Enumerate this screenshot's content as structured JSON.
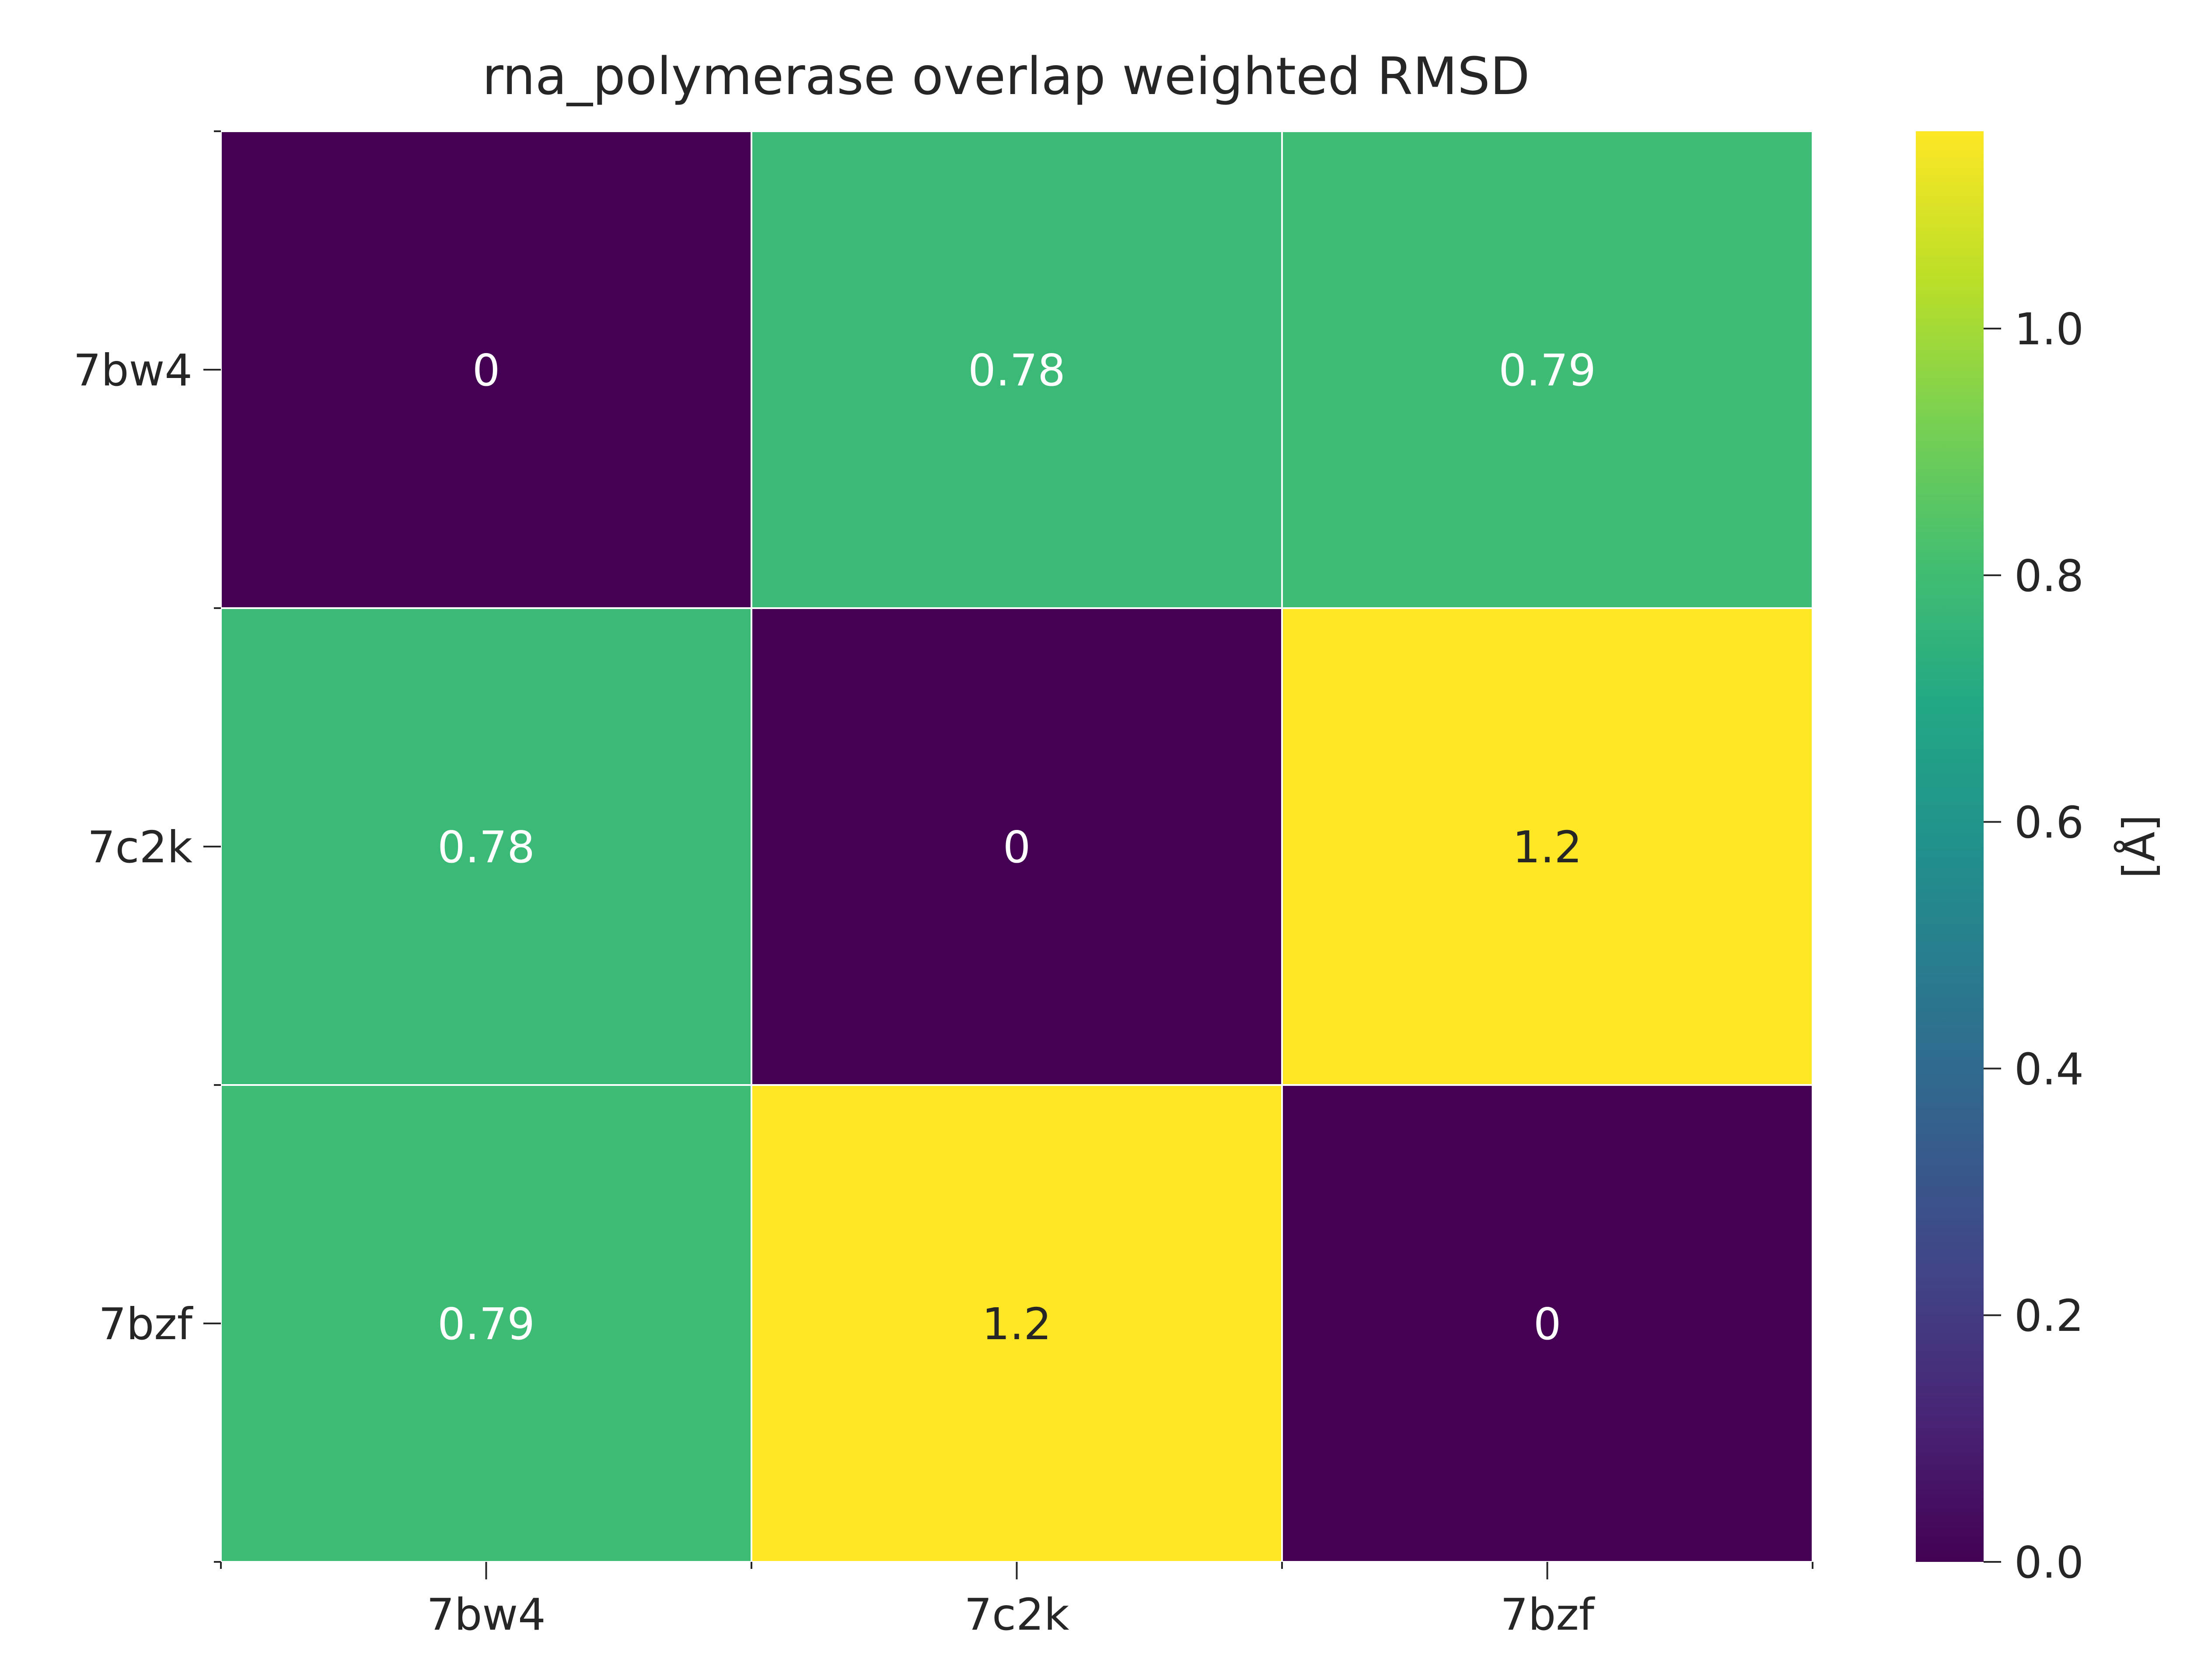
{
  "chart_data": {
    "type": "heatmap",
    "title": "rna_polymerase overlap weighted RMSD",
    "xlabel": "",
    "ylabel": "",
    "x_categories": [
      "7bw4",
      "7c2k",
      "7bzf"
    ],
    "y_categories": [
      "7bw4",
      "7c2k",
      "7bzf"
    ],
    "values": [
      [
        0,
        0.78,
        0.79
      ],
      [
        0.78,
        0,
        1.16
      ],
      [
        0.79,
        1.16,
        0
      ]
    ],
    "annotations": [
      [
        "0",
        "0.78",
        "0.79"
      ],
      [
        "0.78",
        "0",
        "1.2"
      ],
      [
        "0.79",
        "1.2",
        "0"
      ]
    ],
    "colorbar": {
      "label": "[Å]",
      "range": [
        0,
        1.16
      ],
      "ticks": [
        0.0,
        0.2,
        0.4,
        0.6,
        0.8,
        1.0
      ],
      "tick_labels": [
        "0.0",
        "0.2",
        "0.4",
        "0.6",
        "0.8",
        "1.0"
      ],
      "colormap": "viridis"
    },
    "colors": {
      "low": "#440154",
      "mid": "#3bb87a",
      "high": "#fde725",
      "cell_border": "#ffffff"
    },
    "grid": false
  }
}
